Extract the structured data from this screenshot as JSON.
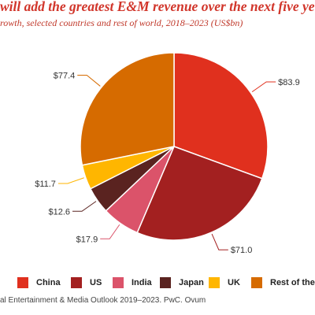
{
  "header": {
    "title": "will add the greatest E&M revenue over the next five ye",
    "subtitle": "rowth, selected countries and rest of world, 2018–2023 (US$bn)"
  },
  "chart_data": {
    "type": "pie",
    "start_angle_deg": 0,
    "direction": "clockwise",
    "slices": [
      {
        "name": "China",
        "value": 83.9,
        "label": "$83.9",
        "color": "#e0301e"
      },
      {
        "name": "US",
        "value": 71.0,
        "label": "$71.0",
        "color": "#a32020"
      },
      {
        "name": "India",
        "value": 17.9,
        "label": "$17.9",
        "color": "#db536a"
      },
      {
        "name": "Japan",
        "value": 12.6,
        "label": "$12.6",
        "color": "#5a2320"
      },
      {
        "name": "UK",
        "value": 11.7,
        "label": "$11.7",
        "color": "#ffb600"
      },
      {
        "name": "Rest of the world",
        "value": 77.4,
        "label": "$77.4",
        "color": "#d66b00"
      }
    ],
    "legend_position": "bottom"
  },
  "source": "al Entertainment & Media Outlook 2019–2023. PwC. Ovum"
}
